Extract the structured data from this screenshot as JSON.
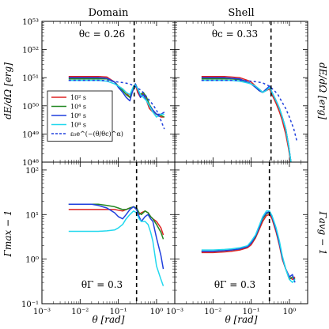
{
  "chart_data": [
    {
      "type": "line",
      "panel": "top-left",
      "title": "Domain",
      "ylabel": "dE/dΩ [erg]",
      "xlog": true,
      "ylog": true,
      "xlim": [
        0.001,
        3
      ],
      "ylim": [
        1e+48,
        1e+53
      ],
      "annotation": "θ_c = 0.26",
      "vline": 0.26,
      "series": [
        {
          "name": "10^2 s",
          "color": "#dd2222",
          "x": [
            0.005,
            0.01,
            0.02,
            0.03,
            0.05,
            0.08,
            0.1,
            0.13,
            0.16,
            0.2,
            0.25,
            0.28,
            0.32,
            0.38,
            0.45,
            0.55,
            0.65,
            0.8,
            1.0,
            1.3,
            1.6
          ],
          "y": [
            1.1e+51,
            1.1e+51,
            1.1e+51,
            1.1e+51,
            1.05e+51,
            7e+50,
            5e+50,
            4e+50,
            3e+50,
            2e+50,
            4e+50,
            6e+50,
            3e+50,
            2e+50,
            3e+50,
            1.5e+50,
            8e+49,
            6e+49,
            5e+49,
            4e+49,
            4e+49
          ]
        },
        {
          "name": "10^4 s",
          "color": "#228822",
          "x": [
            0.005,
            0.01,
            0.02,
            0.03,
            0.05,
            0.08,
            0.1,
            0.13,
            0.16,
            0.2,
            0.25,
            0.28,
            0.32,
            0.38,
            0.45,
            0.55,
            0.65,
            0.8,
            1.0,
            1.3,
            1.6
          ],
          "y": [
            9e+50,
            9e+50,
            9e+50,
            9e+50,
            9e+50,
            7e+50,
            5e+50,
            3.5e+50,
            2.5e+50,
            2e+50,
            4e+50,
            6e+50,
            4e+50,
            2.5e+50,
            3e+50,
            2e+50,
            1.1e+50,
            7e+49,
            5e+49,
            4.5e+49,
            4e+49
          ]
        },
        {
          "name": "10^6 s",
          "color": "#1f3fdd",
          "x": [
            0.005,
            0.01,
            0.02,
            0.03,
            0.05,
            0.08,
            0.1,
            0.13,
            0.16,
            0.2,
            0.25,
            0.28,
            0.32,
            0.38,
            0.45,
            0.55,
            0.65,
            0.8,
            1.0,
            1.3,
            1.6
          ],
          "y": [
            1e+51,
            1e+51,
            1e+51,
            1e+51,
            9.5e+50,
            7e+50,
            4.5e+50,
            3e+50,
            2e+50,
            1.5e+50,
            4.5e+50,
            6e+50,
            4e+50,
            2e+50,
            2.5e+50,
            1.5e+50,
            1e+50,
            7e+49,
            5e+49,
            5e+49,
            6e+49
          ]
        },
        {
          "name": "10^8 s",
          "color": "#22d8ee",
          "x": [
            0.005,
            0.01,
            0.02,
            0.03,
            0.05,
            0.08,
            0.1,
            0.13,
            0.16,
            0.2,
            0.25,
            0.28,
            0.32,
            0.38,
            0.45,
            0.55,
            0.65,
            0.8,
            1.0,
            1.3,
            1.6
          ],
          "y": [
            8e+50,
            8e+50,
            8e+50,
            8e+50,
            7.5e+50,
            6e+50,
            5e+50,
            4e+50,
            3e+50,
            2.5e+50,
            5e+50,
            5.5e+50,
            4e+50,
            2.5e+50,
            2e+50,
            1.5e+50,
            1e+50,
            6e+49,
            4e+49,
            5e+49,
            5e+49
          ]
        },
        {
          "name": "ε₀e^{-(θ/θc)^α}",
          "color": "#1f3fdd",
          "dashed": true,
          "x": [
            0.005,
            0.01,
            0.03,
            0.05,
            0.1,
            0.15,
            0.2,
            0.26,
            0.3,
            0.4,
            0.5,
            0.6,
            0.8,
            1.0,
            1.3,
            1.6
          ],
          "y": [
            8e+50,
            8e+50,
            8e+50,
            7.8e+50,
            7e+50,
            6.5e+50,
            6e+50,
            5e+50,
            4.5e+50,
            3.5e+50,
            2.5e+50,
            1.8e+50,
            1.1e+50,
            7e+49,
            3e+49,
            1.5e+49
          ]
        }
      ]
    },
    {
      "type": "line",
      "panel": "top-right",
      "title": "Shell",
      "ylabel": "dE/dΩ [erg]",
      "xlog": true,
      "ylog": true,
      "xlim": [
        0.001,
        3
      ],
      "ylim": [
        1e+48,
        1e+53
      ],
      "annotation": "θ_c = 0.33",
      "vline": 0.33,
      "series": [
        {
          "name": "10^2 s",
          "color": "#dd2222",
          "x": [
            0.005,
            0.01,
            0.02,
            0.03,
            0.05,
            0.08,
            0.1,
            0.13,
            0.16,
            0.2,
            0.25,
            0.3,
            0.35,
            0.45,
            0.55,
            0.65,
            0.8,
            0.95,
            1.05,
            1.1
          ],
          "y": [
            1.1e+51,
            1.1e+51,
            1.1e+51,
            1.05e+51,
            1e+51,
            8e+50,
            7e+50,
            5e+50,
            4e+50,
            3e+50,
            3.5e+50,
            4e+50,
            2.5e+50,
            1.2e+50,
            6e+49,
            3e+49,
            1e+49,
            3e+48,
            1.2e+48,
            1e+48
          ]
        },
        {
          "name": "10^4 s",
          "color": "#228822",
          "x": [
            0.005,
            0.01,
            0.02,
            0.03,
            0.05,
            0.08,
            0.1,
            0.13,
            0.16,
            0.2,
            0.25,
            0.3,
            0.35,
            0.45,
            0.55,
            0.65,
            0.8,
            0.95,
            1.05,
            1.1
          ],
          "y": [
            9e+50,
            9e+50,
            9e+50,
            9e+50,
            8.5e+50,
            7e+50,
            6e+50,
            4.5e+50,
            3.5e+50,
            3e+50,
            4e+50,
            4.5e+50,
            3e+50,
            1.5e+50,
            8e+49,
            4e+49,
            1.5e+49,
            4e+48,
            1.5e+48,
            1e+48
          ]
        },
        {
          "name": "10^6 s",
          "color": "#1f3fdd",
          "x": [
            0.005,
            0.01,
            0.02,
            0.03,
            0.05,
            0.08,
            0.1,
            0.13,
            0.16,
            0.2,
            0.25,
            0.3,
            0.35,
            0.45,
            0.55,
            0.65,
            0.8,
            0.95,
            1.05,
            1.1
          ],
          "y": [
            1e+51,
            1e+51,
            1e+51,
            9.5e+50,
            9e+50,
            7e+50,
            6e+50,
            4.5e+50,
            3.5e+50,
            3e+50,
            4e+50,
            5e+50,
            3e+50,
            1.5e+50,
            8e+49,
            4e+49,
            1.5e+49,
            4e+48,
            1.5e+48,
            1e+48
          ]
        },
        {
          "name": "10^8 s",
          "color": "#22d8ee",
          "x": [
            0.005,
            0.01,
            0.02,
            0.03,
            0.05,
            0.08,
            0.1,
            0.13,
            0.16,
            0.2,
            0.25,
            0.3,
            0.35,
            0.45,
            0.55,
            0.65,
            0.8,
            0.95,
            1.05,
            1.1
          ],
          "y": [
            8e+50,
            8e+50,
            8e+50,
            8e+50,
            7.5e+50,
            6.5e+50,
            6e+50,
            5e+50,
            4e+50,
            3e+50,
            3.5e+50,
            4.5e+50,
            3e+50,
            1.5e+50,
            8e+49,
            4e+49,
            1.5e+49,
            4e+48,
            1.5e+48,
            1e+48
          ]
        },
        {
          "name": "ε₀e^{-(θ/θc)^α}",
          "color": "#1f3fdd",
          "dashed": true,
          "x": [
            0.005,
            0.01,
            0.03,
            0.05,
            0.1,
            0.15,
            0.2,
            0.3,
            0.4,
            0.5,
            0.6,
            0.8,
            1.0,
            1.3,
            1.6
          ],
          "y": [
            8e+50,
            8e+50,
            8e+50,
            8e+50,
            7.5e+50,
            7e+50,
            6.5e+50,
            5e+50,
            3.5e+50,
            2.5e+50,
            1.6e+50,
            8e+49,
            4e+49,
            1.5e+49,
            5e+48
          ]
        }
      ]
    },
    {
      "type": "line",
      "panel": "bottom-left",
      "ylabel": "Γmax − 1",
      "xlabel": "θ [rad]",
      "xlog": true,
      "ylog": true,
      "xlim": [
        0.001,
        3
      ],
      "ylim": [
        0.1,
        150
      ],
      "annotation": "θ_Γ = 0.3",
      "vline": 0.3,
      "series": [
        {
          "name": "10^2 s",
          "color": "#dd2222",
          "x": [
            0.005,
            0.01,
            0.02,
            0.03,
            0.05,
            0.08,
            0.1,
            0.13,
            0.16,
            0.2,
            0.25,
            0.3,
            0.35,
            0.4,
            0.5,
            0.6,
            0.7,
            0.8,
            1.0,
            1.3,
            1.5
          ],
          "y": [
            13,
            13,
            13,
            13,
            13,
            13,
            12.5,
            12,
            13,
            14,
            15,
            13,
            10,
            11,
            12,
            11,
            9,
            8,
            7,
            5,
            3.5
          ]
        },
        {
          "name": "10^4 s",
          "color": "#228822",
          "x": [
            0.005,
            0.01,
            0.02,
            0.03,
            0.05,
            0.08,
            0.1,
            0.13,
            0.16,
            0.2,
            0.25,
            0.3,
            0.35,
            0.4,
            0.5,
            0.6,
            0.7,
            0.8,
            1.0,
            1.3,
            1.5
          ],
          "y": [
            17,
            17,
            17,
            17,
            16,
            15,
            14,
            13,
            13,
            14,
            15,
            14,
            11,
            10,
            12,
            11,
            9,
            8,
            6,
            4,
            2.8
          ]
        },
        {
          "name": "10^6 s",
          "color": "#1f3fdd",
          "x": [
            0.005,
            0.01,
            0.02,
            0.03,
            0.05,
            0.08,
            0.1,
            0.13,
            0.16,
            0.2,
            0.25,
            0.3,
            0.35,
            0.4,
            0.5,
            0.6,
            0.7,
            0.8,
            1.0,
            1.3,
            1.5
          ],
          "y": [
            17,
            17,
            17,
            16,
            14,
            11,
            9,
            8,
            10,
            13,
            15,
            13,
            9,
            7,
            9,
            10,
            8,
            7,
            3,
            1.2,
            0.6
          ]
        },
        {
          "name": "10^8 s",
          "color": "#22d8ee",
          "x": [
            0.005,
            0.01,
            0.02,
            0.03,
            0.05,
            0.08,
            0.1,
            0.13,
            0.16,
            0.2,
            0.25,
            0.3,
            0.35,
            0.4,
            0.5,
            0.6,
            0.7,
            0.8,
            1.0,
            1.3,
            1.5
          ],
          "y": [
            4.2,
            4.2,
            4.2,
            4.2,
            4.3,
            4.5,
            5,
            6,
            8,
            10,
            12,
            11,
            8,
            7,
            7,
            6,
            4,
            2.5,
            0.7,
            0.35,
            0.25
          ]
        }
      ]
    },
    {
      "type": "line",
      "panel": "bottom-right",
      "ylabel": "Γavg − 1",
      "xlabel": "θ [rad]",
      "xlog": true,
      "ylog": true,
      "xlim": [
        0.001,
        3
      ],
      "ylim": [
        0.1,
        150
      ],
      "annotation": "θ_Γ = 0.3",
      "vline": 0.3,
      "series": [
        {
          "name": "10^2 s",
          "color": "#dd2222",
          "x": [
            0.005,
            0.01,
            0.02,
            0.03,
            0.05,
            0.08,
            0.1,
            0.13,
            0.16,
            0.2,
            0.25,
            0.3,
            0.35,
            0.45,
            0.55,
            0.65,
            0.8,
            1.0,
            1.2,
            1.4
          ],
          "y": [
            1.4,
            1.4,
            1.45,
            1.5,
            1.6,
            1.8,
            2.1,
            3,
            4.5,
            7,
            9.5,
            10,
            8,
            4,
            2,
            1,
            0.6,
            0.4,
            0.35,
            0.4
          ]
        },
        {
          "name": "10^4 s",
          "color": "#228822",
          "x": [
            0.005,
            0.01,
            0.02,
            0.03,
            0.05,
            0.08,
            0.1,
            0.13,
            0.16,
            0.2,
            0.25,
            0.3,
            0.35,
            0.45,
            0.55,
            0.65,
            0.8,
            1.0,
            1.2,
            1.4
          ],
          "y": [
            1.5,
            1.5,
            1.55,
            1.6,
            1.7,
            1.9,
            2.3,
            3.2,
            5,
            8,
            10.5,
            11,
            9,
            4.5,
            2.2,
            1.1,
            0.6,
            0.35,
            0.4,
            0.35
          ]
        },
        {
          "name": "10^6 s",
          "color": "#1f3fdd",
          "x": [
            0.005,
            0.01,
            0.02,
            0.03,
            0.05,
            0.08,
            0.1,
            0.13,
            0.16,
            0.2,
            0.25,
            0.3,
            0.35,
            0.45,
            0.55,
            0.65,
            0.8,
            1.0,
            1.2,
            1.4
          ],
          "y": [
            1.5,
            1.5,
            1.55,
            1.6,
            1.7,
            1.9,
            2.3,
            3.3,
            5,
            8.5,
            11,
            11.5,
            9,
            4.5,
            2.2,
            1.1,
            0.6,
            0.4,
            0.45,
            0.3
          ]
        },
        {
          "name": "10^8 s",
          "color": "#22d8ee",
          "x": [
            0.005,
            0.01,
            0.02,
            0.03,
            0.05,
            0.08,
            0.1,
            0.13,
            0.16,
            0.2,
            0.25,
            0.3,
            0.35,
            0.45,
            0.55,
            0.65,
            0.8,
            1.0,
            1.2,
            1.4
          ],
          "y": [
            1.6,
            1.6,
            1.65,
            1.7,
            1.8,
            2,
            2.5,
            3.5,
            5.5,
            9,
            12,
            12,
            9.5,
            5,
            2.5,
            1.2,
            0.6,
            0.35,
            0.3,
            0.35
          ]
        }
      ]
    }
  ],
  "legend": {
    "placement": "left",
    "entries": [
      {
        "label": "10² s",
        "color": "#dd2222",
        "dashed": false
      },
      {
        "label": "10⁴ s",
        "color": "#228822",
        "dashed": false
      },
      {
        "label": "10⁶ s",
        "color": "#1f3fdd",
        "dashed": false
      },
      {
        "label": "10⁸ s",
        "color": "#22d8ee",
        "dashed": false
      },
      {
        "label": "ε₀e^(−(θ/θc)^α)",
        "color": "#1f3fdd",
        "dashed": true
      }
    ]
  },
  "text": {
    "title_left": "Domain",
    "title_right": "Shell",
    "annot_tl": "θc = 0.26",
    "annot_tr": "θc = 0.33",
    "annot_bl": "θΓ = 0.3",
    "annot_br": "θΓ = 0.3",
    "ylabel_top_left": "dE/dΩ [erg]",
    "ylabel_top_right": "dE/dΩ [erg]",
    "ylabel_bottom_left": "Γmax − 1",
    "ylabel_bottom_right": "Γavg − 1",
    "xlabel_left": "θ [rad]",
    "xlabel_right": "θ [rad]"
  }
}
